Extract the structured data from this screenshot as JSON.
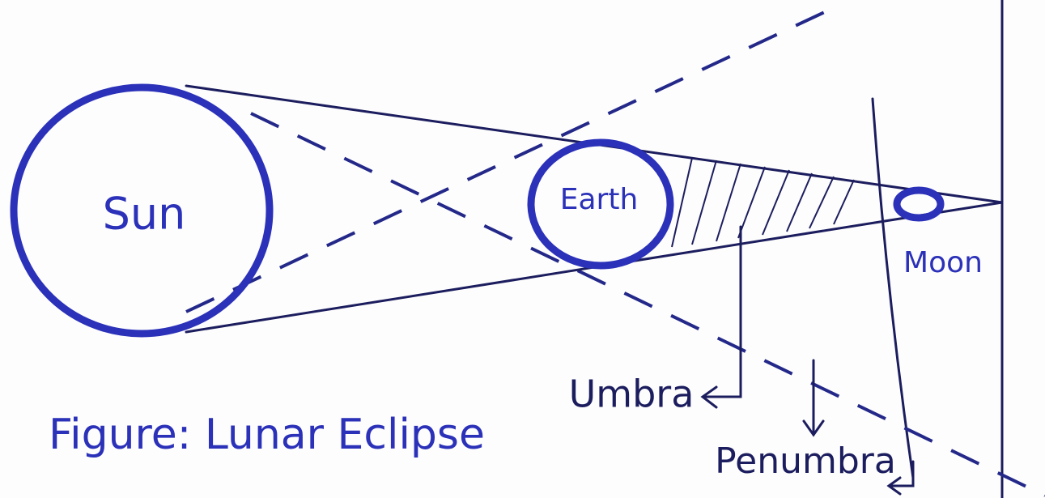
{
  "figure_caption": "Figure: Lunar Eclipse",
  "nodes": [
    {
      "label": "Sun"
    },
    {
      "label": "Earth"
    },
    {
      "label": "Moon"
    }
  ],
  "annotations": [
    {
      "label": "Umbra"
    },
    {
      "label": "Penumbra"
    }
  ]
}
